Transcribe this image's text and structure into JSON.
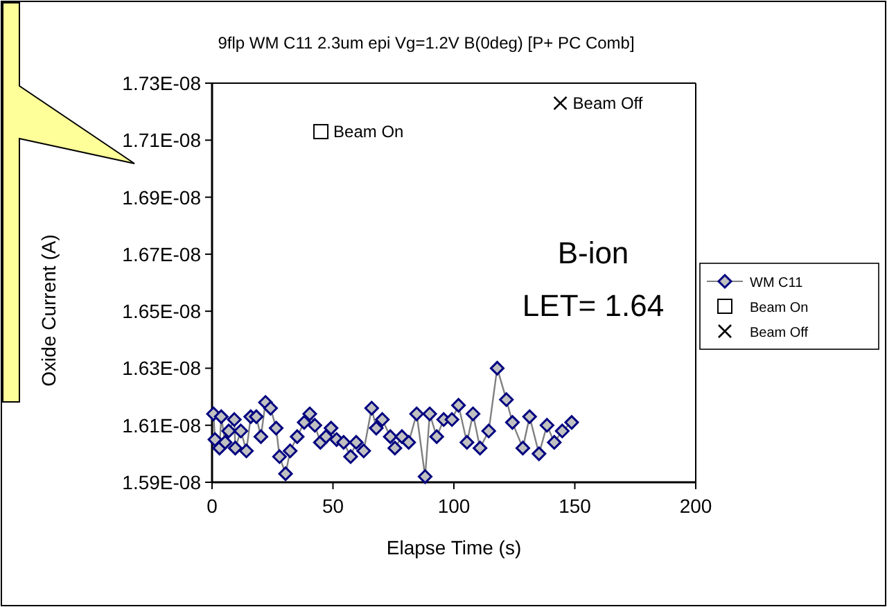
{
  "chart_data": {
    "type": "line",
    "title": "9flp WM C11 2.3um epi Vg=1.2V B(0deg) [P+ PC Comb]",
    "xlabel": "Elapse Time (s)",
    "ylabel": "Oxide Current (A)",
    "xlim": [
      0,
      200
    ],
    "xticks": [
      0,
      50,
      100,
      150,
      200
    ],
    "ylim": [
      1.59e-08,
      1.73e-08
    ],
    "yticks": [
      {
        "value": 1.59e-08,
        "label": "1.59E-08"
      },
      {
        "value": 1.61e-08,
        "label": "1.61E-08"
      },
      {
        "value": 1.63e-08,
        "label": "1.63E-08"
      },
      {
        "value": 1.65e-08,
        "label": "1.65E-08"
      },
      {
        "value": 1.67e-08,
        "label": "1.67E-08"
      },
      {
        "value": 1.69e-08,
        "label": "1.69E-08"
      },
      {
        "value": 1.71e-08,
        "label": "1.71E-08"
      },
      {
        "value": 1.73e-08,
        "label": "1.73E-08"
      }
    ],
    "grid": false,
    "legend": "right",
    "annotations": [
      "B-ion",
      "LET= 1.64"
    ],
    "series": [
      {
        "name": "WM C11",
        "color": "#000080",
        "marker": "diamond",
        "x": [
          0.6,
          1.2,
          3.1,
          3.8,
          5.4,
          6.9,
          9.2,
          9.6,
          11.9,
          14.2,
          16.0,
          18.3,
          20.2,
          22.1,
          24.2,
          26.5,
          27.9,
          30.4,
          32.3,
          35.2,
          38.1,
          40.4,
          42.5,
          44.8,
          47.1,
          49.2,
          51.5,
          54.4,
          57.3,
          59.6,
          62.7,
          66.0,
          67.9,
          70.4,
          73.7,
          75.6,
          78.5,
          81.3,
          84.6,
          88.1,
          90.0,
          92.9,
          95.8,
          99.2,
          101.9,
          105.4,
          107.9,
          110.8,
          114.4,
          117.9,
          121.7,
          124.2,
          128.5,
          131.3,
          135.2,
          138.5,
          141.5,
          144.8,
          148.7
        ],
        "values": [
          1.614e-08,
          1.605e-08,
          1.602e-08,
          1.613e-08,
          1.604e-08,
          1.608e-08,
          1.612e-08,
          1.602e-08,
          1.608e-08,
          1.601e-08,
          1.613e-08,
          1.613e-08,
          1.606e-08,
          1.618e-08,
          1.616e-08,
          1.609e-08,
          1.599e-08,
          1.593e-08,
          1.601e-08,
          1.606e-08,
          1.611e-08,
          1.614e-08,
          1.61e-08,
          1.604e-08,
          1.606e-08,
          1.609e-08,
          1.605e-08,
          1.604e-08,
          1.599e-08,
          1.604e-08,
          1.601e-08,
          1.616e-08,
          1.609e-08,
          1.612e-08,
          1.606e-08,
          1.602e-08,
          1.606e-08,
          1.604e-08,
          1.614e-08,
          1.592e-08,
          1.614e-08,
          1.606e-08,
          1.612e-08,
          1.612e-08,
          1.617e-08,
          1.604e-08,
          1.614e-08,
          1.602e-08,
          1.608e-08,
          1.63e-08,
          1.619e-08,
          1.611e-08,
          1.602e-08,
          1.613e-08,
          1.6e-08,
          1.61e-08,
          1.604e-08,
          1.608e-08,
          1.611e-08
        ]
      },
      {
        "name": "Beam On",
        "type": "scatter",
        "color": "#000000",
        "marker": "square",
        "x": [
          45
        ],
        "values": [
          1.713e-08
        ]
      },
      {
        "name": "Beam Off",
        "type": "scatter",
        "color": "#000000",
        "marker": "cross",
        "x": [
          144
        ],
        "values": [
          1.723e-08
        ]
      }
    ]
  }
}
